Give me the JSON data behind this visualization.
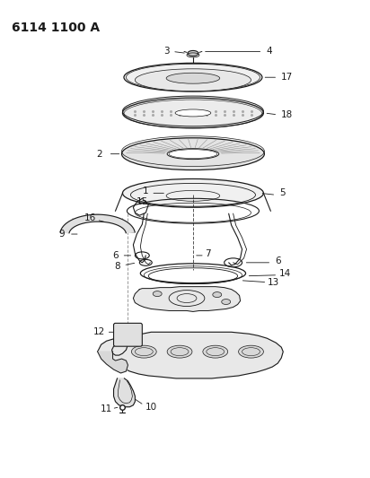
{
  "title": "6114 1100 A",
  "bg": "#ffffff",
  "lc": "#1a1a1a",
  "lw": 0.7,
  "fs": 7.5,
  "figw": 4.12,
  "figh": 5.33,
  "dpi": 100
}
